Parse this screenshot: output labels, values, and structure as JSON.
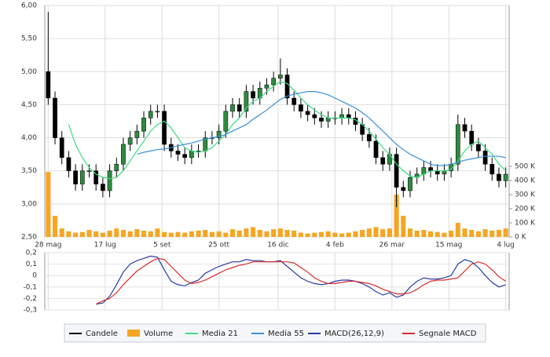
{
  "chart_data": [
    {
      "type": "candlestick",
      "x": [
        0,
        6,
        12,
        18,
        24,
        30,
        36,
        42,
        48,
        54,
        60,
        66,
        72,
        78,
        84,
        90,
        96,
        102,
        108,
        114,
        120,
        126,
        132,
        138,
        144,
        150,
        156,
        162,
        168,
        174,
        180,
        186,
        192,
        198,
        204,
        210,
        216,
        222,
        228,
        234,
        240,
        246,
        252,
        258,
        264,
        270,
        276,
        282,
        288,
        294,
        300,
        306,
        312,
        318,
        324,
        330,
        336,
        342,
        348,
        354,
        360,
        366,
        372,
        378,
        384,
        390,
        396,
        402
      ],
      "xlim": [
        -3,
        405
      ],
      "xticks": [
        {
          "value": 0,
          "label": "28 mag"
        },
        {
          "value": 50,
          "label": "17 lug"
        },
        {
          "value": 100,
          "label": "5 set"
        },
        {
          "value": 150,
          "label": "25 ott"
        },
        {
          "value": 202,
          "label": "16 dic"
        },
        {
          "value": 252,
          "label": "4 feb"
        },
        {
          "value": 302,
          "label": "26 mar"
        },
        {
          "value": 352,
          "label": "15 mag"
        },
        {
          "value": 402,
          "label": "4 lug"
        }
      ],
      "ylim": [
        2.5,
        6
      ],
      "yticks": [
        {
          "value": 2.5,
          "label": "2,50"
        },
        {
          "value": 3,
          "label": "3,00"
        },
        {
          "value": 3.5,
          "label": "3,50"
        },
        {
          "value": 4,
          "label": "4,00"
        },
        {
          "value": 4.5,
          "label": "4,50"
        },
        {
          "value": 5,
          "label": "5,00"
        },
        {
          "value": 5.5,
          "label": "5,50"
        },
        {
          "value": 6,
          "label": "6,00"
        }
      ],
      "y2lim": [
        0,
        1640
      ],
      "y2ticks": [
        {
          "value": 0,
          "label": "0 K"
        },
        {
          "value": 100,
          "label": "100 K"
        },
        {
          "value": 200,
          "label": "200 K"
        },
        {
          "value": 300,
          "label": "300 K"
        },
        {
          "value": 400,
          "label": "400 K"
        },
        {
          "value": 500,
          "label": "500 K"
        }
      ],
      "grid": true,
      "series": [
        {
          "name": "Candele",
          "type": "candlestick",
          "color": "#000000",
          "up_color": "#2e8b3e",
          "open": [
            5.0,
            4.6,
            4.0,
            3.7,
            3.5,
            3.3,
            3.5,
            3.5,
            3.3,
            3.2,
            3.5,
            3.6,
            3.9,
            4.0,
            4.1,
            4.3,
            4.4,
            4.4,
            3.9,
            3.8,
            3.75,
            3.7,
            3.8,
            3.8,
            4.0,
            4.0,
            4.1,
            4.4,
            4.5,
            4.4,
            4.7,
            4.6,
            4.75,
            4.8,
            4.9,
            4.95,
            4.6,
            4.5,
            4.4,
            4.35,
            4.3,
            4.25,
            4.3,
            4.3,
            4.35,
            4.3,
            4.2,
            4.05,
            3.95,
            3.7,
            3.6,
            3.75,
            3.25,
            3.2,
            3.4,
            3.45,
            3.55,
            3.5,
            3.45,
            3.5,
            3.6,
            4.2,
            4.1,
            3.9,
            3.8,
            3.6,
            3.45,
            3.35
          ],
          "high": [
            5.9,
            4.7,
            4.1,
            3.8,
            3.6,
            3.6,
            3.6,
            3.6,
            3.4,
            3.6,
            3.7,
            4.0,
            4.1,
            4.2,
            4.4,
            4.5,
            4.5,
            4.5,
            4.0,
            3.9,
            3.85,
            3.9,
            3.9,
            4.1,
            4.1,
            4.2,
            4.5,
            4.6,
            4.6,
            4.8,
            4.8,
            4.85,
            4.9,
            5.0,
            5.2,
            5.05,
            4.7,
            4.6,
            4.5,
            4.45,
            4.4,
            4.4,
            4.4,
            4.45,
            4.45,
            4.4,
            4.3,
            4.15,
            4.05,
            3.8,
            3.85,
            3.85,
            3.35,
            3.5,
            3.55,
            3.65,
            3.65,
            3.6,
            3.6,
            3.7,
            4.35,
            4.3,
            4.2,
            4.0,
            3.9,
            3.7,
            3.55,
            3.55
          ],
          "low": [
            4.5,
            3.9,
            3.6,
            3.4,
            3.2,
            3.2,
            3.4,
            3.2,
            3.1,
            3.1,
            3.4,
            3.5,
            3.8,
            3.9,
            4.0,
            4.2,
            4.3,
            3.8,
            3.7,
            3.65,
            3.6,
            3.6,
            3.7,
            3.7,
            3.9,
            3.9,
            4.0,
            4.3,
            4.3,
            4.3,
            4.5,
            4.5,
            4.65,
            4.7,
            4.8,
            4.5,
            4.4,
            4.3,
            4.25,
            4.2,
            4.15,
            4.15,
            4.2,
            4.2,
            4.2,
            4.1,
            3.95,
            3.85,
            3.6,
            3.5,
            3.5,
            2.95,
            3.1,
            3.1,
            3.3,
            3.35,
            3.4,
            3.35,
            3.35,
            3.4,
            3.5,
            4.0,
            3.8,
            3.7,
            3.5,
            3.35,
            3.25,
            3.25
          ],
          "close": [
            4.6,
            4.0,
            3.7,
            3.5,
            3.3,
            3.5,
            3.5,
            3.3,
            3.2,
            3.5,
            3.6,
            3.9,
            4.0,
            4.1,
            4.3,
            4.4,
            4.4,
            3.9,
            3.8,
            3.75,
            3.7,
            3.8,
            3.8,
            4.0,
            4.0,
            4.1,
            4.4,
            4.5,
            4.4,
            4.7,
            4.6,
            4.75,
            4.8,
            4.9,
            4.95,
            4.6,
            4.5,
            4.4,
            4.35,
            4.3,
            4.25,
            4.3,
            4.3,
            4.35,
            4.3,
            4.2,
            4.05,
            3.95,
            3.7,
            3.6,
            3.75,
            3.25,
            3.2,
            3.4,
            3.45,
            3.55,
            3.5,
            3.45,
            3.5,
            3.6,
            4.2,
            4.1,
            3.9,
            3.8,
            3.6,
            3.45,
            3.35,
            3.45
          ]
        },
        {
          "name": "Volume",
          "type": "bar",
          "axis": "y2",
          "color": "#f5a623",
          "values": [
            460,
            150,
            60,
            40,
            30,
            35,
            50,
            40,
            30,
            45,
            60,
            50,
            40,
            55,
            45,
            40,
            60,
            35,
            30,
            35,
            30,
            40,
            45,
            50,
            35,
            40,
            30,
            55,
            45,
            60,
            70,
            50,
            40,
            55,
            60,
            50,
            45,
            30,
            25,
            30,
            35,
            40,
            30,
            25,
            30,
            40,
            50,
            60,
            70,
            55,
            60,
            300,
            150,
            60,
            45,
            50,
            40,
            35,
            30,
            45,
            100,
            60,
            50,
            40,
            55,
            45,
            50,
            60
          ]
        },
        {
          "name": "Media 21",
          "type": "line",
          "color": "#3ddc84",
          "values": [
            null,
            null,
            null,
            4.2,
            3.9,
            3.7,
            3.55,
            3.45,
            3.4,
            3.38,
            3.4,
            3.5,
            3.65,
            3.8,
            3.95,
            4.1,
            4.2,
            4.25,
            4.15,
            4.0,
            3.85,
            3.8,
            3.78,
            3.8,
            3.85,
            3.95,
            4.05,
            4.2,
            4.3,
            4.45,
            4.55,
            4.6,
            4.7,
            4.78,
            4.85,
            4.82,
            4.72,
            4.6,
            4.5,
            4.42,
            4.35,
            4.3,
            4.3,
            4.3,
            4.3,
            4.27,
            4.2,
            4.1,
            3.98,
            3.85,
            3.75,
            3.6,
            3.5,
            3.42,
            3.4,
            3.45,
            3.5,
            3.5,
            3.5,
            3.52,
            3.65,
            3.8,
            3.9,
            3.95,
            3.85,
            3.75,
            3.6,
            3.5
          ]
        },
        {
          "name": "Media 55",
          "type": "line",
          "color": "#3a8fd9",
          "values": [
            null,
            null,
            null,
            null,
            null,
            null,
            null,
            null,
            null,
            null,
            null,
            null,
            null,
            3.75,
            3.78,
            3.8,
            3.82,
            3.83,
            3.85,
            3.88,
            3.9,
            3.92,
            3.95,
            3.98,
            4.0,
            4.02,
            4.05,
            4.1,
            4.15,
            4.2,
            4.28,
            4.35,
            4.42,
            4.5,
            4.58,
            4.63,
            4.66,
            4.68,
            4.7,
            4.7,
            4.68,
            4.65,
            4.6,
            4.55,
            4.5,
            4.45,
            4.38,
            4.3,
            4.2,
            4.1,
            4.0,
            3.9,
            3.82,
            3.75,
            3.7,
            3.65,
            3.6,
            3.58,
            3.58,
            3.6,
            3.63,
            3.66,
            3.68,
            3.7,
            3.72,
            3.72,
            3.72,
            3.7
          ]
        }
      ]
    },
    {
      "type": "line",
      "ylim": [
        -0.3,
        0.2
      ],
      "yticks": [
        {
          "value": 0.2,
          "label": "0,2"
        },
        {
          "value": 0.1,
          "label": "0,1"
        },
        0,
        {
          "value": -0.1,
          "label": "-0,1"
        },
        {
          "value": -0.2,
          "label": "-0,2"
        },
        {
          "value": -0.3,
          "label": "-0,3"
        }
      ],
      "grid": true,
      "series": [
        {
          "name": "MACD(26,12,9)",
          "color": "#2a3aa8",
          "values": [
            null,
            null,
            null,
            null,
            null,
            null,
            null,
            -0.25,
            -0.24,
            -0.18,
            -0.08,
            0.03,
            0.1,
            0.13,
            0.15,
            0.17,
            0.16,
            0.05,
            -0.05,
            -0.08,
            -0.09,
            -0.06,
            -0.04,
            0.02,
            0.05,
            0.08,
            0.1,
            0.12,
            0.12,
            0.14,
            0.13,
            0.13,
            0.12,
            0.12,
            0.13,
            0.08,
            0.03,
            -0.02,
            -0.05,
            -0.07,
            -0.08,
            -0.07,
            -0.05,
            -0.04,
            -0.04,
            -0.05,
            -0.07,
            -0.1,
            -0.14,
            -0.17,
            -0.15,
            -0.19,
            -0.17,
            -0.1,
            -0.05,
            -0.02,
            -0.03,
            -0.03,
            -0.02,
            0.0,
            0.1,
            0.14,
            0.12,
            0.07,
            0.0,
            -0.06,
            -0.1,
            -0.08
          ]
        },
        {
          "name": "Segnale MACD",
          "color": "#d92b2b",
          "values": [
            null,
            null,
            null,
            null,
            null,
            null,
            null,
            -0.25,
            -0.22,
            -0.2,
            -0.15,
            -0.08,
            -0.02,
            0.04,
            0.08,
            0.12,
            0.15,
            0.14,
            0.08,
            0.02,
            -0.04,
            -0.07,
            -0.06,
            -0.04,
            -0.01,
            0.02,
            0.05,
            0.07,
            0.09,
            0.1,
            0.12,
            0.12,
            0.12,
            0.12,
            0.12,
            0.12,
            0.11,
            0.07,
            0.03,
            -0.02,
            -0.05,
            -0.07,
            -0.07,
            -0.06,
            -0.05,
            -0.05,
            -0.06,
            -0.07,
            -0.09,
            -0.12,
            -0.14,
            -0.16,
            -0.16,
            -0.15,
            -0.12,
            -0.08,
            -0.05,
            -0.04,
            -0.04,
            -0.03,
            -0.02,
            0.04,
            0.1,
            0.12,
            0.1,
            0.05,
            -0.01,
            -0.05
          ]
        }
      ]
    }
  ]
}
